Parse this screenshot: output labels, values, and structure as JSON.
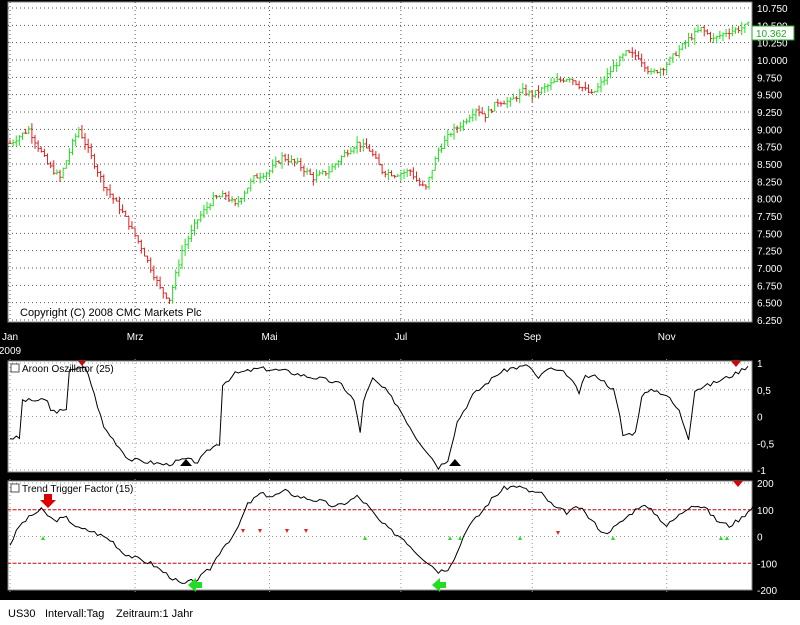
{
  "chart_data": [
    {
      "type": "ohlc",
      "symbol_label": "US30",
      "copyright": "Copyright (C) 2008 CMC Markets Plc",
      "last_price": "10.362",
      "y_ticks": [
        "10.750",
        "10.500",
        "10.250",
        "10.000",
        "9.750",
        "9.500",
        "9.250",
        "9.000",
        "8.750",
        "8.500",
        "8.250",
        "8.000",
        "7.750",
        "7.500",
        "7.250",
        "7.000",
        "6.750",
        "6.500",
        "6.250"
      ],
      "ylim": [
        6250,
        10750
      ],
      "x_ticks": [
        {
          "label": "Jan",
          "sublabel": "2009",
          "day": 0
        },
        {
          "label": "Mrz",
          "day": 40
        },
        {
          "label": "Mai",
          "day": 83
        },
        {
          "label": "Jul",
          "day": 125
        },
        {
          "label": "Sep",
          "day": 167
        },
        {
          "label": "Nov",
          "day": 210
        }
      ],
      "total_days": 252,
      "closes_keyframes": [
        [
          0,
          8800
        ],
        [
          3,
          8900
        ],
        [
          6,
          9000
        ],
        [
          12,
          8500
        ],
        [
          16,
          8300
        ],
        [
          20,
          8800
        ],
        [
          22,
          9000
        ],
        [
          25,
          8700
        ],
        [
          30,
          8200
        ],
        [
          36,
          7800
        ],
        [
          42,
          7300
        ],
        [
          48,
          6700
        ],
        [
          51,
          6550
        ],
        [
          55,
          7250
        ],
        [
          60,
          7700
        ],
        [
          65,
          8000
        ],
        [
          69,
          8050
        ],
        [
          72,
          7900
        ],
        [
          78,
          8300
        ],
        [
          83,
          8400
        ],
        [
          87,
          8600
        ],
        [
          92,
          8500
        ],
        [
          97,
          8300
        ],
        [
          102,
          8400
        ],
        [
          107,
          8650
        ],
        [
          111,
          8800
        ],
        [
          115,
          8700
        ],
        [
          119,
          8400
        ],
        [
          123,
          8350
        ],
        [
          128,
          8400
        ],
        [
          131,
          8200
        ],
        [
          133,
          8150
        ],
        [
          137,
          8700
        ],
        [
          141,
          8950
        ],
        [
          145,
          9100
        ],
        [
          149,
          9300
        ],
        [
          152,
          9200
        ],
        [
          156,
          9400
        ],
        [
          160,
          9400
        ],
        [
          164,
          9550
        ],
        [
          167,
          9500
        ],
        [
          171,
          9600
        ],
        [
          175,
          9700
        ],
        [
          179,
          9750
        ],
        [
          183,
          9600
        ],
        [
          186,
          9500
        ],
        [
          188,
          9600
        ],
        [
          193,
          9900
        ],
        [
          197,
          10100
        ],
        [
          201,
          10050
        ],
        [
          205,
          9800
        ],
        [
          209,
          9900
        ],
        [
          213,
          10100
        ],
        [
          217,
          10300
        ],
        [
          221,
          10450
        ],
        [
          225,
          10300
        ],
        [
          229,
          10400
        ],
        [
          233,
          10450
        ],
        [
          236,
          10500
        ]
      ],
      "colors": {
        "up": "#22dd22",
        "down": "#dd2222",
        "grid": "#555555",
        "bg": "#ffffff"
      }
    },
    {
      "type": "line",
      "title": "Aroon Oszillator (25)",
      "y_ticks": [
        "1",
        "0,5",
        "0",
        "-0,5",
        "-1"
      ],
      "ylim": [
        -1,
        1
      ],
      "keyframes": [
        [
          0,
          -0.4
        ],
        [
          3,
          -0.4
        ],
        [
          4,
          0.3
        ],
        [
          12,
          0.3
        ],
        [
          13,
          0.1
        ],
        [
          18,
          0.1
        ],
        [
          19,
          0.9
        ],
        [
          24,
          0.9
        ],
        [
          25,
          0.8
        ],
        [
          30,
          -0.2
        ],
        [
          34,
          -0.5
        ],
        [
          38,
          -0.8
        ],
        [
          44,
          -0.85
        ],
        [
          50,
          -0.9
        ],
        [
          56,
          -0.8
        ],
        [
          60,
          -0.85
        ],
        [
          64,
          -0.6
        ],
        [
          67,
          -0.5
        ],
        [
          68,
          0.6
        ],
        [
          72,
          0.8
        ],
        [
          80,
          0.9
        ],
        [
          88,
          0.85
        ],
        [
          95,
          0.75
        ],
        [
          100,
          0.7
        ],
        [
          106,
          0.6
        ],
        [
          110,
          0.3
        ],
        [
          112,
          -0.3
        ],
        [
          113,
          0.3
        ],
        [
          116,
          0.7
        ],
        [
          120,
          0.5
        ],
        [
          124,
          0.2
        ],
        [
          130,
          -0.4
        ],
        [
          134,
          -0.7
        ],
        [
          137,
          -0.95
        ],
        [
          140,
          -0.8
        ],
        [
          143,
          -0.1
        ],
        [
          145,
          0.1
        ],
        [
          148,
          0.4
        ],
        [
          152,
          0.6
        ],
        [
          156,
          0.8
        ],
        [
          160,
          0.9
        ],
        [
          166,
          0.95
        ],
        [
          169,
          0.7
        ],
        [
          172,
          0.9
        ],
        [
          178,
          0.8
        ],
        [
          182,
          0.45
        ],
        [
          184,
          0.75
        ],
        [
          188,
          0.75
        ],
        [
          193,
          0.5
        ],
        [
          195,
          0.0
        ],
        [
          196,
          -0.35
        ],
        [
          200,
          -0.3
        ],
        [
          202,
          0.4
        ],
        [
          206,
          0.5
        ],
        [
          210,
          0.4
        ],
        [
          214,
          0.1
        ],
        [
          217,
          -0.4
        ],
        [
          219,
          0.5
        ],
        [
          224,
          0.6
        ],
        [
          228,
          0.7
        ],
        [
          232,
          0.8
        ],
        [
          236,
          0.95
        ]
      ],
      "line_color": "#000000"
    },
    {
      "type": "line",
      "title": "Trend Trigger Factor (15)",
      "y_ticks": [
        "200",
        "100",
        "0",
        "-100",
        "-200"
      ],
      "ylim": [
        -200,
        200
      ],
      "reference_lines": [
        100,
        -100
      ],
      "keyframes": [
        [
          0,
          -30
        ],
        [
          3,
          40
        ],
        [
          7,
          80
        ],
        [
          10,
          100
        ],
        [
          14,
          60
        ],
        [
          18,
          70
        ],
        [
          22,
          30
        ],
        [
          26,
          20
        ],
        [
          30,
          0
        ],
        [
          33,
          -20
        ],
        [
          36,
          -60
        ],
        [
          40,
          -80
        ],
        [
          45,
          -100
        ],
        [
          50,
          -140
        ],
        [
          55,
          -180
        ],
        [
          60,
          -160
        ],
        [
          64,
          -120
        ],
        [
          68,
          -40
        ],
        [
          72,
          10
        ],
        [
          76,
          120
        ],
        [
          80,
          160
        ],
        [
          84,
          150
        ],
        [
          88,
          170
        ],
        [
          92,
          150
        ],
        [
          96,
          140
        ],
        [
          100,
          130
        ],
        [
          104,
          110
        ],
        [
          108,
          130
        ],
        [
          111,
          150
        ],
        [
          114,
          120
        ],
        [
          118,
          60
        ],
        [
          122,
          20
        ],
        [
          126,
          -10
        ],
        [
          130,
          -60
        ],
        [
          134,
          -100
        ],
        [
          137,
          -130
        ],
        [
          140,
          -120
        ],
        [
          143,
          -60
        ],
        [
          146,
          30
        ],
        [
          150,
          80
        ],
        [
          154,
          140
        ],
        [
          158,
          180
        ],
        [
          162,
          190
        ],
        [
          166,
          170
        ],
        [
          170,
          160
        ],
        [
          174,
          110
        ],
        [
          178,
          90
        ],
        [
          182,
          110
        ],
        [
          186,
          60
        ],
        [
          190,
          10
        ],
        [
          194,
          40
        ],
        [
          198,
          80
        ],
        [
          202,
          120
        ],
        [
          206,
          90
        ],
        [
          210,
          40
        ],
        [
          214,
          80
        ],
        [
          218,
          120
        ],
        [
          222,
          110
        ],
        [
          226,
          60
        ],
        [
          230,
          40
        ],
        [
          234,
          70
        ],
        [
          238,
          120
        ]
      ],
      "line_color": "#000000",
      "ref_color": "#dd0000"
    }
  ],
  "footer": {
    "symbol": "US30",
    "interval": "Intervall:Tag",
    "period": "Zeitraum:1 Jahr"
  }
}
